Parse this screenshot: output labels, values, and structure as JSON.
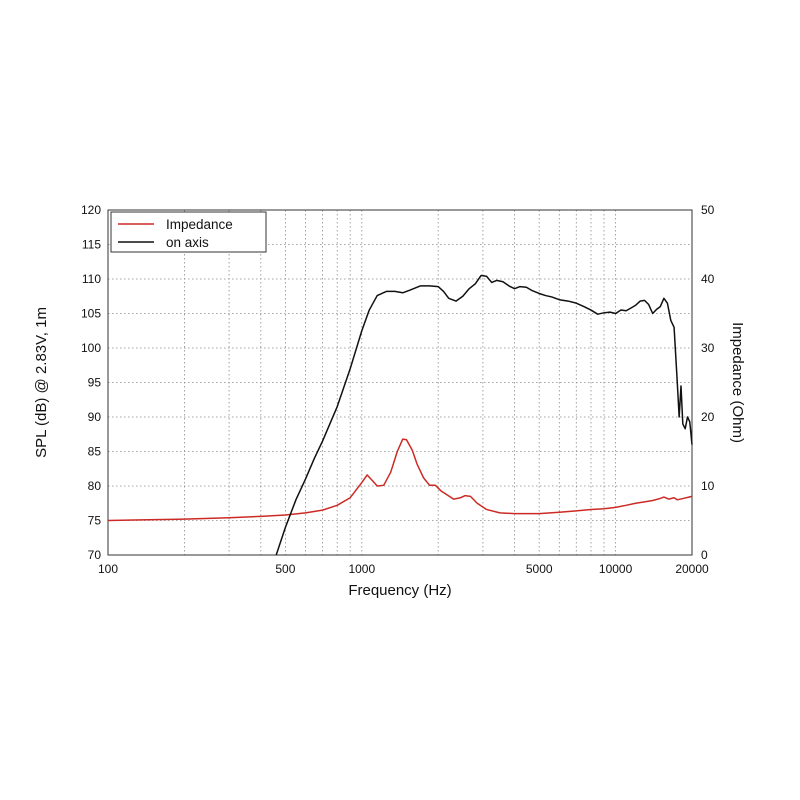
{
  "chart_data": {
    "type": "line",
    "xlabel": "Frequency (Hz)",
    "ylabel": "SPL (dB) @ 2.83V, 1m",
    "y2label": "Impedance (Ohm)",
    "xscale": "log",
    "xlim": [
      100,
      20000
    ],
    "ylim": [
      70,
      120
    ],
    "y2lim": [
      0,
      50
    ],
    "grid": true,
    "legend_position": "top-left",
    "x_tick_labels": [
      "100",
      "500",
      "1000",
      "5000",
      "10000",
      "20000"
    ],
    "y_tick_labels": [
      "70",
      "75",
      "80",
      "85",
      "90",
      "95",
      "100",
      "105",
      "110",
      "115",
      "120"
    ],
    "y2_tick_labels": [
      "0",
      "10",
      "20",
      "30",
      "40",
      "50"
    ],
    "series": [
      {
        "name": "Impedance",
        "axis": "right",
        "color": "#cc2a25",
        "points": [
          [
            100,
            5.0
          ],
          [
            200,
            5.2
          ],
          [
            300,
            5.4
          ],
          [
            400,
            5.6
          ],
          [
            500,
            5.8
          ],
          [
            600,
            6.1
          ],
          [
            700,
            6.5
          ],
          [
            800,
            7.2
          ],
          [
            900,
            8.3
          ],
          [
            1000,
            10.5
          ],
          [
            1050,
            11.6
          ],
          [
            1100,
            10.8
          ],
          [
            1150,
            10.0
          ],
          [
            1220,
            10.1
          ],
          [
            1300,
            12.0
          ],
          [
            1380,
            15.0
          ],
          [
            1450,
            16.8
          ],
          [
            1500,
            16.7
          ],
          [
            1580,
            15.2
          ],
          [
            1650,
            13.2
          ],
          [
            1750,
            11.2
          ],
          [
            1850,
            10.1
          ],
          [
            1950,
            10.1
          ],
          [
            2050,
            9.3
          ],
          [
            2150,
            8.8
          ],
          [
            2300,
            8.1
          ],
          [
            2450,
            8.3
          ],
          [
            2550,
            8.6
          ],
          [
            2680,
            8.5
          ],
          [
            2850,
            7.5
          ],
          [
            3100,
            6.6
          ],
          [
            3500,
            6.1
          ],
          [
            4000,
            6.0
          ],
          [
            5000,
            6.0
          ],
          [
            6000,
            6.2
          ],
          [
            7000,
            6.4
          ],
          [
            8000,
            6.6
          ],
          [
            9000,
            6.7
          ],
          [
            10000,
            6.9
          ],
          [
            11000,
            7.2
          ],
          [
            12000,
            7.5
          ],
          [
            13000,
            7.7
          ],
          [
            14000,
            7.9
          ],
          [
            15000,
            8.2
          ],
          [
            15500,
            8.4
          ],
          [
            16200,
            8.1
          ],
          [
            17000,
            8.3
          ],
          [
            17500,
            8.0
          ],
          [
            18500,
            8.2
          ],
          [
            19500,
            8.4
          ],
          [
            20000,
            8.5
          ]
        ]
      },
      {
        "name": "on axis",
        "axis": "left",
        "color": "#111111",
        "points": [
          [
            460,
            70.0
          ],
          [
            500,
            74.0
          ],
          [
            550,
            78.0
          ],
          [
            600,
            81.0
          ],
          [
            650,
            84.0
          ],
          [
            700,
            86.5
          ],
          [
            800,
            91.5
          ],
          [
            900,
            97.0
          ],
          [
            1000,
            102.5
          ],
          [
            1070,
            105.5
          ],
          [
            1150,
            107.6
          ],
          [
            1250,
            108.2
          ],
          [
            1350,
            108.2
          ],
          [
            1450,
            108.0
          ],
          [
            1550,
            108.4
          ],
          [
            1700,
            109.0
          ],
          [
            1850,
            109.0
          ],
          [
            2000,
            108.9
          ],
          [
            2100,
            108.2
          ],
          [
            2200,
            107.2
          ],
          [
            2350,
            106.8
          ],
          [
            2500,
            107.5
          ],
          [
            2650,
            108.6
          ],
          [
            2800,
            109.3
          ],
          [
            2950,
            110.5
          ],
          [
            3100,
            110.4
          ],
          [
            3250,
            109.5
          ],
          [
            3400,
            109.8
          ],
          [
            3600,
            109.6
          ],
          [
            3800,
            109.0
          ],
          [
            4000,
            108.6
          ],
          [
            4200,
            108.9
          ],
          [
            4450,
            108.8
          ],
          [
            4700,
            108.3
          ],
          [
            5000,
            107.9
          ],
          [
            5300,
            107.6
          ],
          [
            5600,
            107.4
          ],
          [
            6000,
            107.0
          ],
          [
            6500,
            106.8
          ],
          [
            7000,
            106.5
          ],
          [
            7500,
            106.0
          ],
          [
            8000,
            105.5
          ],
          [
            8500,
            104.9
          ],
          [
            9000,
            105.1
          ],
          [
            9500,
            105.2
          ],
          [
            10000,
            105.0
          ],
          [
            10500,
            105.5
          ],
          [
            11000,
            105.4
          ],
          [
            11500,
            105.8
          ],
          [
            12000,
            106.2
          ],
          [
            12500,
            106.8
          ],
          [
            13000,
            106.9
          ],
          [
            13500,
            106.3
          ],
          [
            14000,
            105.0
          ],
          [
            14500,
            105.6
          ],
          [
            15000,
            106.0
          ],
          [
            15500,
            107.2
          ],
          [
            16000,
            106.5
          ],
          [
            16500,
            104.0
          ],
          [
            17000,
            103.0
          ],
          [
            17500,
            95.0
          ],
          [
            17800,
            90.0
          ],
          [
            18100,
            94.5
          ],
          [
            18400,
            89.0
          ],
          [
            18800,
            88.3
          ],
          [
            19200,
            90.0
          ],
          [
            19600,
            89.3
          ],
          [
            20000,
            86.0
          ]
        ]
      }
    ]
  }
}
